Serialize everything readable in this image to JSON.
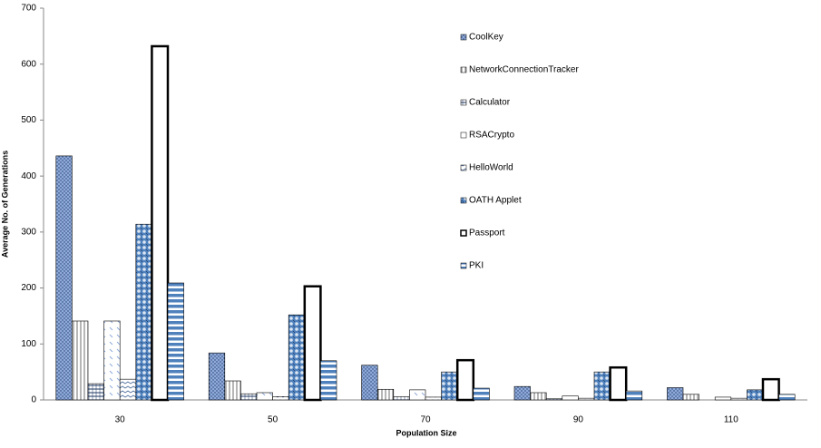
{
  "chart_data": {
    "type": "bar",
    "x_label": "Population Size",
    "y_label": "Average No. of Generations",
    "categories": [
      "30",
      "50",
      "70",
      "90",
      "110"
    ],
    "ylim": [
      0,
      700
    ],
    "yticks": [
      0,
      100,
      200,
      300,
      400,
      500,
      600,
      700
    ],
    "series": [
      {
        "name": "CoolKey",
        "color": "#8eaadb",
        "values": [
          436,
          84,
          62,
          24,
          22
        ]
      },
      {
        "name": "NetworkConnectionTracker",
        "color": "#ffffff",
        "values": [
          141,
          34,
          19,
          13,
          10
        ]
      },
      {
        "name": "Calculator",
        "color": "#ffffff",
        "values": [
          29,
          11,
          6,
          2,
          0
        ]
      },
      {
        "name": "RSACrypto",
        "color": "#ffffff",
        "values": [
          141,
          13,
          18,
          7,
          5
        ]
      },
      {
        "name": "HelloWorld",
        "color": "#ffffff",
        "values": [
          37,
          6,
          5,
          3,
          3
        ]
      },
      {
        "name": "OATH Applet",
        "color": "#4f81bd",
        "values": [
          314,
          152,
          50,
          50,
          18
        ]
      },
      {
        "name": "Passport",
        "color": "#ffffff",
        "values": [
          632,
          203,
          71,
          58,
          37
        ]
      },
      {
        "name": "PKI",
        "color": "#4f81bd",
        "values": [
          209,
          70,
          21,
          16,
          10
        ]
      }
    ]
  }
}
